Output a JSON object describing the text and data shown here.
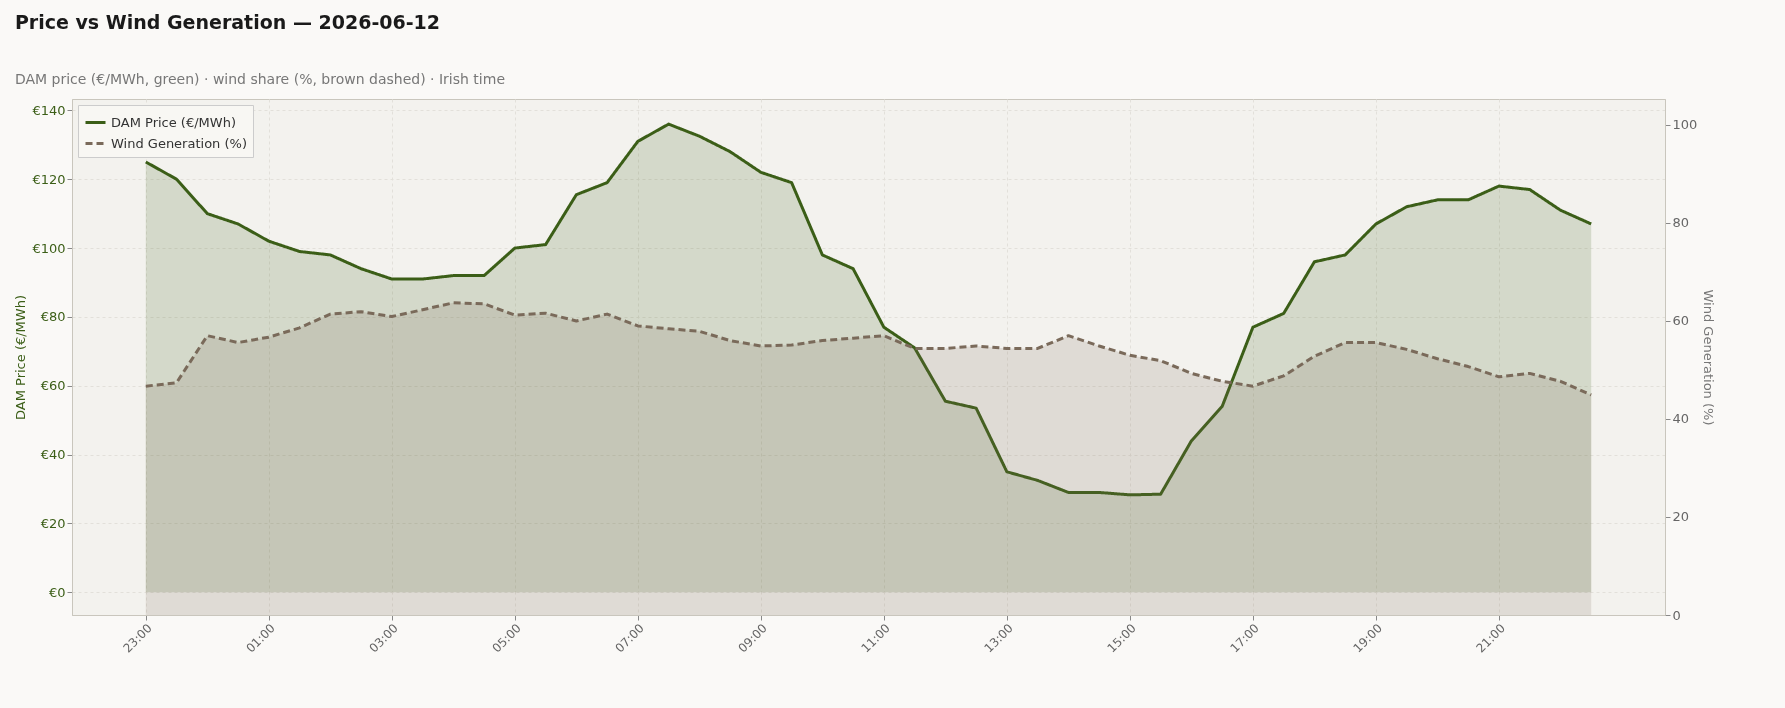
{
  "chart_data": {
    "type": "area",
    "title": "Price vs Wind Generation — 2026-06-12",
    "subtitle": "DAM price (€/MWh, green)  ·  wind share (%, brown dashed)  ·  Irish time",
    "ylabel": "DAM Price (€/MWh)",
    "y2label": "Wind Generation (%)",
    "x": [
      "2026-06-11T23:00",
      "2026-06-11T23:30",
      "2026-06-12T00:00",
      "2026-06-12T00:30",
      "2026-06-12T01:00",
      "2026-06-12T01:30",
      "2026-06-12T02:00",
      "2026-06-12T02:30",
      "2026-06-12T03:00",
      "2026-06-12T03:30",
      "2026-06-12T04:00",
      "2026-06-12T04:30",
      "2026-06-12T05:00",
      "2026-06-12T05:30",
      "2026-06-12T06:00",
      "2026-06-12T06:30",
      "2026-06-12T07:00",
      "2026-06-12T07:30",
      "2026-06-12T08:00",
      "2026-06-12T08:30",
      "2026-06-12T09:00",
      "2026-06-12T09:30",
      "2026-06-12T10:00",
      "2026-06-12T10:30",
      "2026-06-12T11:00",
      "2026-06-12T11:30",
      "2026-06-12T12:00",
      "2026-06-12T12:30",
      "2026-06-12T13:00",
      "2026-06-12T13:30",
      "2026-06-12T14:00",
      "2026-06-12T14:30",
      "2026-06-12T15:00",
      "2026-06-12T15:30",
      "2026-06-12T16:00",
      "2026-06-12T16:30",
      "2026-06-12T17:00",
      "2026-06-12T17:30",
      "2026-06-12T18:00",
      "2026-06-12T18:30",
      "2026-06-12T19:00",
      "2026-06-12T19:30",
      "2026-06-12T20:00",
      "2026-06-12T20:30",
      "2026-06-12T21:00",
      "2026-06-12T21:30",
      "2026-06-12T22:00",
      "2026-06-12T22:30"
    ],
    "xlim": [
      "2026-06-11T21:48",
      "2026-06-12T23:42"
    ],
    "xticks": [
      {
        "value": "2026-06-11T23:00",
        "label": "23:00"
      },
      {
        "value": "2026-06-12T01:00",
        "label": "01:00"
      },
      {
        "value": "2026-06-12T03:00",
        "label": "03:00"
      },
      {
        "value": "2026-06-12T05:00",
        "label": "05:00"
      },
      {
        "value": "2026-06-12T07:00",
        "label": "07:00"
      },
      {
        "value": "2026-06-12T09:00",
        "label": "09:00"
      },
      {
        "value": "2026-06-12T11:00",
        "label": "11:00"
      },
      {
        "value": "2026-06-12T13:00",
        "label": "13:00"
      },
      {
        "value": "2026-06-12T15:00",
        "label": "15:00"
      },
      {
        "value": "2026-06-12T17:00",
        "label": "17:00"
      },
      {
        "value": "2026-06-12T19:00",
        "label": "19:00"
      },
      {
        "value": "2026-06-12T21:00",
        "label": "21:00"
      }
    ],
    "ylim": [
      -6.6,
      143.3
    ],
    "yticks": [
      {
        "value": 0,
        "label": "€0"
      },
      {
        "value": 20,
        "label": "€20"
      },
      {
        "value": 40,
        "label": "€40"
      },
      {
        "value": 60,
        "label": "€60"
      },
      {
        "value": 80,
        "label": "€80"
      },
      {
        "value": 100,
        "label": "€100"
      },
      {
        "value": 120,
        "label": "€120"
      },
      {
        "value": 140,
        "label": "€140"
      }
    ],
    "y2lim": [
      0,
      105.3
    ],
    "y2ticks": [
      0,
      20,
      40,
      60,
      80,
      100
    ],
    "series": [
      {
        "name": "DAM Price (€/MWh)",
        "color": "#3b5e17",
        "line_style": "solid",
        "values": [
          125,
          120,
          110,
          107,
          102,
          99,
          98,
          94,
          91,
          91,
          92,
          92,
          100,
          101,
          115.5,
          119,
          131,
          136,
          132.5,
          128,
          122,
          119,
          98,
          94,
          77,
          71,
          55.5,
          53.5,
          35,
          32.5,
          29,
          29,
          28.3,
          28.5,
          44,
          54,
          77,
          81,
          96,
          98,
          107,
          112,
          114,
          114,
          118,
          117,
          111,
          107
        ]
      },
      {
        "name": "Wind Generation (%)",
        "color": "#7a6a5a",
        "line_style": "dashed",
        "axis": "y2",
        "values": [
          46.7,
          47.4,
          57,
          55.6,
          56.7,
          58.6,
          61.4,
          61.9,
          60.9,
          62.3,
          63.7,
          63.5,
          61.2,
          61.6,
          60,
          61.4,
          59,
          58.4,
          57.9,
          56,
          54.9,
          55.1,
          56,
          56.5,
          57,
          54.4,
          54.4,
          54.9,
          54.4,
          54.4,
          57,
          54.9,
          53,
          51.9,
          49.3,
          47.7,
          46.7,
          48.8,
          52.8,
          55.6,
          55.6,
          54.2,
          52.3,
          50.7,
          48.6,
          49.3,
          47.7,
          44.9
        ]
      }
    ],
    "grid": true,
    "legend": "top left",
    "marker": "none"
  }
}
